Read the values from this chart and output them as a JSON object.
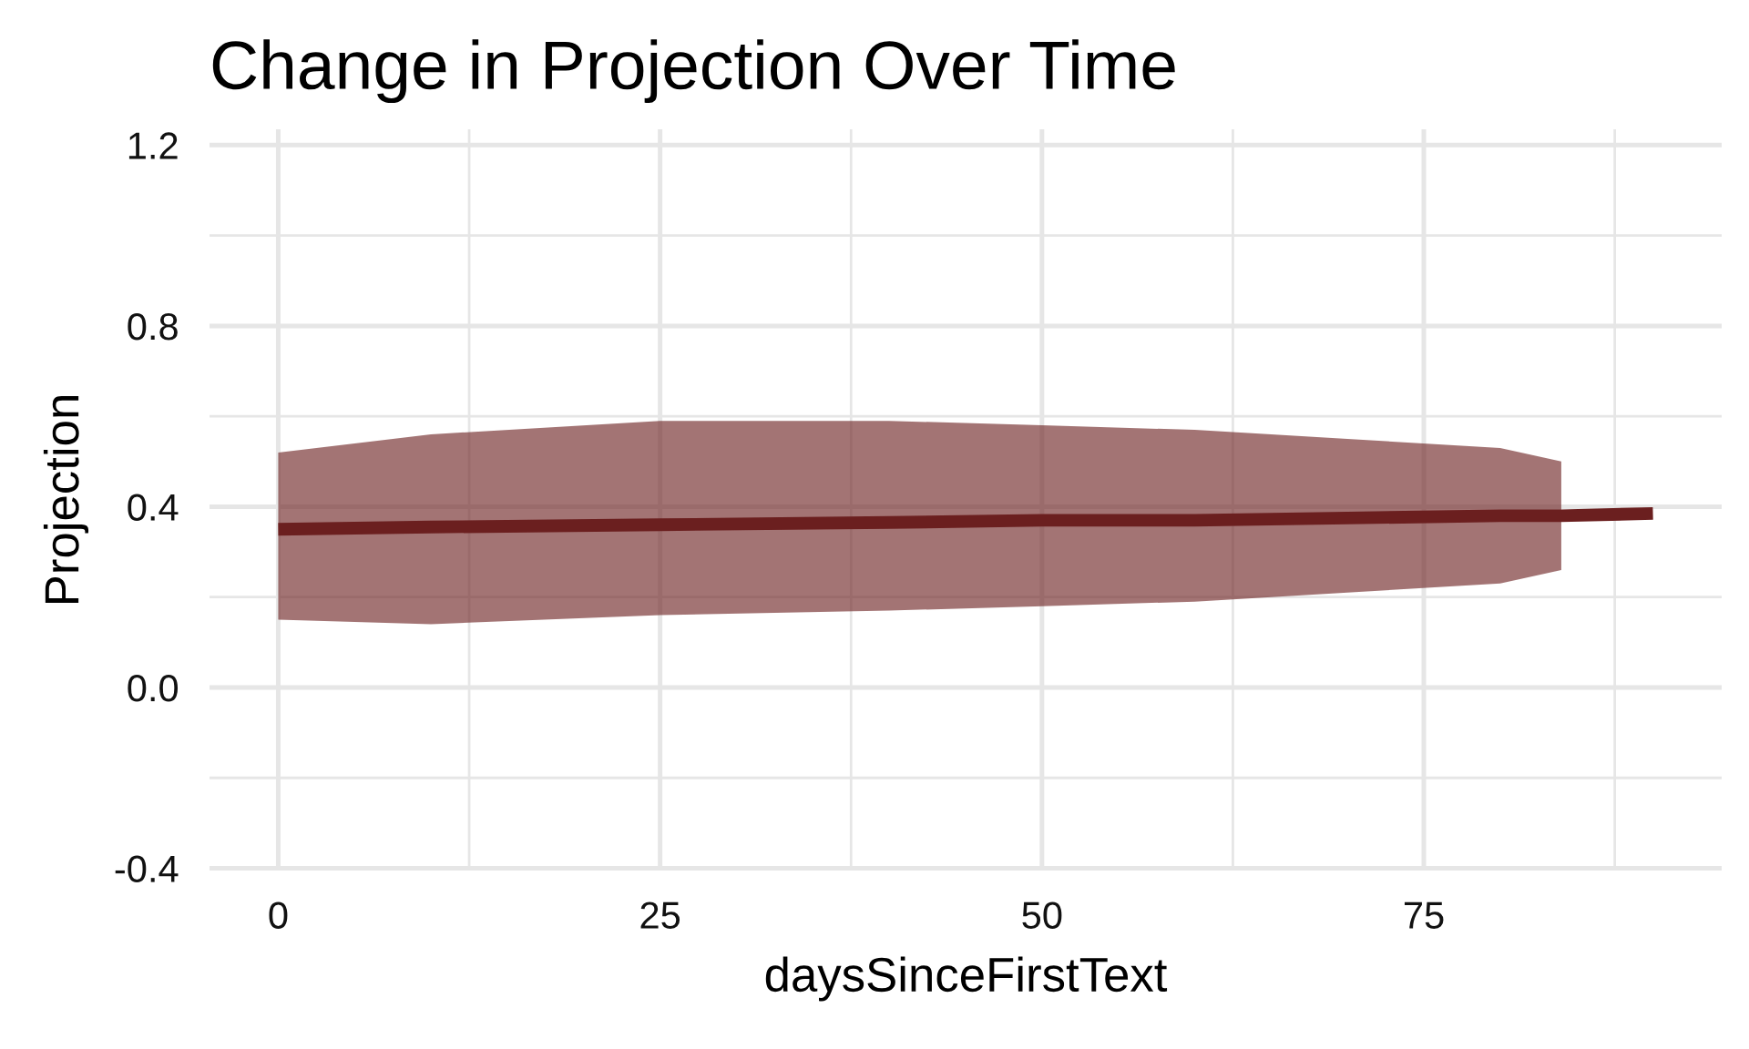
{
  "chart_data": {
    "type": "line",
    "title": "Change in Projection Over Time",
    "xlabel": "daysSinceFirstText",
    "ylabel": "Projection",
    "series": [
      {
        "color": "#6b1f1f",
        "x": [
          0,
          10,
          25,
          40,
          50,
          60,
          70,
          80,
          84,
          90
        ],
        "values": [
          0.35,
          0.355,
          0.36,
          0.365,
          0.37,
          0.37,
          0.375,
          0.38,
          0.38,
          0.385
        ],
        "lower": [
          0.15,
          0.14,
          0.16,
          0.17,
          0.18,
          0.19,
          0.21,
          0.23,
          0.26,
          null
        ],
        "upper": [
          0.52,
          0.56,
          0.59,
          0.59,
          0.58,
          0.57,
          0.55,
          0.53,
          0.5,
          null
        ]
      }
    ],
    "xlim": [
      -4.5,
      94.5
    ],
    "ylim": [
      -0.405,
      1.235
    ],
    "xticks": [
      0,
      {
        "value": 12.5,
        "label": null
      },
      25,
      {
        "value": 37.5,
        "label": null
      },
      50,
      {
        "value": 62.5,
        "label": null
      },
      75,
      {
        "value": 87.5,
        "label": null
      }
    ],
    "yticks": [
      -0.4,
      {
        "value": -0.2,
        "label": null
      },
      {
        "value": 0,
        "label": "0.0"
      },
      {
        "value": 0.2,
        "label": null
      },
      0.4,
      {
        "value": 0.6,
        "label": null
      },
      0.8,
      {
        "value": 1.0,
        "label": null
      },
      1.2
    ],
    "grid": true,
    "marker": "none",
    "line_style": "solid"
  }
}
